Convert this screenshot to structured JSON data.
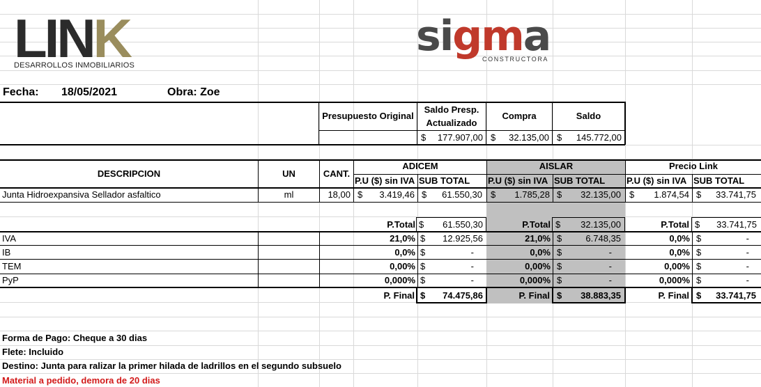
{
  "logos": {
    "link_word": "LIN",
    "link_k": "K",
    "link_sub": "DESARROLLOS INMOBILIARIOS",
    "sigma_left": "si",
    "sigma_mid": "gm",
    "sigma_right": "a",
    "sigma_sub": "CONSTRUCTORA"
  },
  "header": {
    "fecha_label": "Fecha:",
    "fecha_value": "18/05/2021",
    "obra": "Obra: Zoe"
  },
  "budget": {
    "col1": "Presupuesto Original",
    "col2_line1": "Saldo Presp.",
    "col2_line2": "Actualizado",
    "col3": "Compra",
    "col4": "Saldo",
    "currency": "$",
    "saldo_presp": "177.907,00",
    "compra": "32.135,00",
    "saldo": "145.772,00"
  },
  "table": {
    "h_desc": "DESCRIPCION",
    "h_un": "UN",
    "h_cant": "CANT.",
    "suppliers": [
      "ADICEM",
      "AISLAR",
      "Precio Link"
    ],
    "h_pu": "P.U ($) sin IVA",
    "h_sub": "SUB TOTAL",
    "item": {
      "desc": "Junta Hidroexpansiva Sellador asfaltico",
      "un": "ml",
      "cant": "18,00",
      "pu": [
        "3.419,46",
        "1.785,28",
        "1.874,54"
      ],
      "sub": [
        "61.550,30",
        "32.135,00",
        "33.741,75"
      ]
    },
    "ptotal_label": "P.Total",
    "ptotal": [
      "61.550,30",
      "32.135,00",
      "33.741,75"
    ],
    "taxes": [
      {
        "name": "IVA",
        "rates": [
          "21,0%",
          "21,0%",
          "0,0%"
        ],
        "amounts": [
          "12.925,56",
          "6.748,35",
          "-"
        ]
      },
      {
        "name": "IB",
        "rates": [
          "0,0%",
          "0,0%",
          "0,0%"
        ],
        "amounts": [
          "-",
          "-",
          "-"
        ]
      },
      {
        "name": "TEM",
        "rates": [
          "0,00%",
          "0,00%",
          "0,00%"
        ],
        "amounts": [
          "-",
          "-",
          "-"
        ]
      },
      {
        "name": "PyP",
        "rates": [
          "0,000%",
          "0,000%",
          "0,000%"
        ],
        "amounts": [
          "-",
          "-",
          "-"
        ]
      }
    ],
    "pfinal_label": "P. Final",
    "pfinal": [
      "74.475,86",
      "38.883,35",
      "33.741,75"
    ]
  },
  "notes": {
    "pago": "Forma de Pago: Cheque a 30 dias",
    "flete": "Flete: Incluido",
    "destino": "Destino:  Junta para ralizar la primer hilada de ladrillos en el segundo subsuelo",
    "material": "Material a pedido, demora de 20 dias"
  },
  "colors": {
    "highlight": "#c0c0c0",
    "alert": "#d21a1a"
  }
}
